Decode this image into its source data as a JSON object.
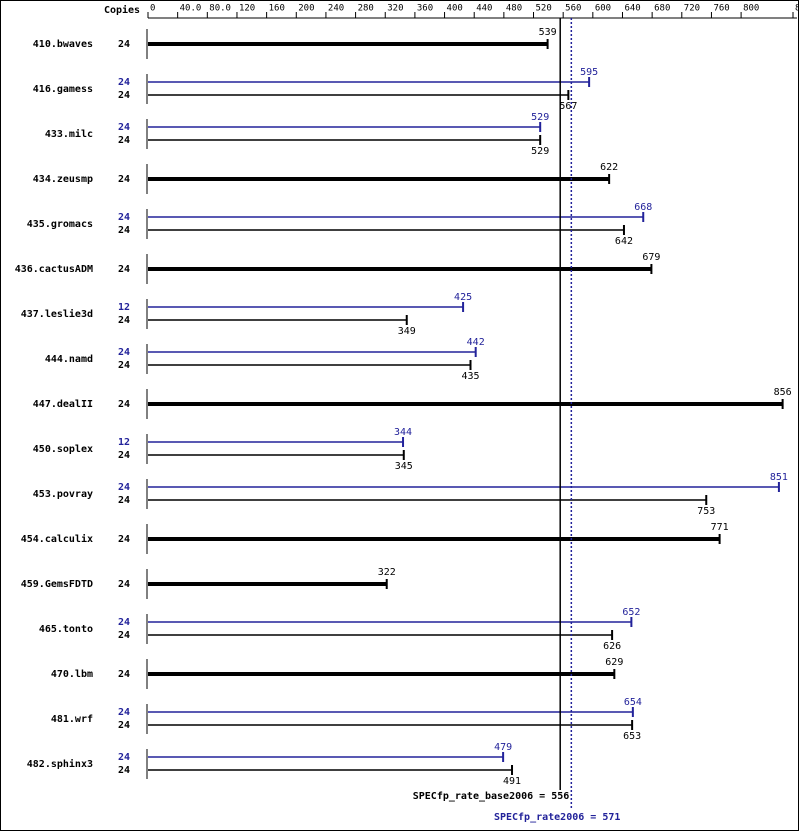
{
  "chart_data": {
    "type": "spec_bar",
    "x_label": "Copies",
    "xlim": [
      0,
      870
    ],
    "xticks": [
      0,
      {
        "value": 40,
        "label": "40.0"
      },
      {
        "value": 80,
        "label": "80.0"
      },
      120,
      160,
      200,
      240,
      280,
      320,
      360,
      400,
      440,
      480,
      520,
      560,
      600,
      640,
      680,
      720,
      760,
      800,
      870
    ],
    "base_color": "#000000",
    "peak_color": "#22229a",
    "rows": [
      {
        "name": "410.bwaves",
        "base_copies": 24,
        "base": 539
      },
      {
        "name": "416.gamess",
        "peak_copies": 24,
        "peak": 595,
        "base_copies": 24,
        "base": 567
      },
      {
        "name": "433.milc",
        "peak_copies": 24,
        "peak": 529,
        "base_copies": 24,
        "base": 529
      },
      {
        "name": "434.zeusmp",
        "base_copies": 24,
        "base": 622
      },
      {
        "name": "435.gromacs",
        "peak_copies": 24,
        "peak": 668,
        "base_copies": 24,
        "base": 642
      },
      {
        "name": "436.cactusADM",
        "base_copies": 24,
        "base": 679
      },
      {
        "name": "437.leslie3d",
        "peak_copies": 12,
        "peak": 425,
        "base_copies": 24,
        "base": 349
      },
      {
        "name": "444.namd",
        "peak_copies": 24,
        "peak": 442,
        "base_copies": 24,
        "base": 435
      },
      {
        "name": "447.dealII",
        "base_copies": 24,
        "base": 856
      },
      {
        "name": "450.soplex",
        "peak_copies": 12,
        "peak": 344,
        "base_copies": 24,
        "base": 345
      },
      {
        "name": "453.povray",
        "peak_copies": 24,
        "peak": 851,
        "base_copies": 24,
        "base": 753
      },
      {
        "name": "454.calculix",
        "base_copies": 24,
        "base": 771
      },
      {
        "name": "459.GemsFDTD",
        "base_copies": 24,
        "base": 322
      },
      {
        "name": "465.tonto",
        "peak_copies": 24,
        "peak": 652,
        "base_copies": 24,
        "base": 626
      },
      {
        "name": "470.lbm",
        "base_copies": 24,
        "base": 629
      },
      {
        "name": "481.wrf",
        "peak_copies": 24,
        "peak": 654,
        "base_copies": 24,
        "base": 653
      },
      {
        "name": "482.sphinx3",
        "peak_copies": 24,
        "peak": 479,
        "base_copies": 24,
        "base": 491
      }
    ],
    "base_summary_label": "SPECfp_rate_base2006 =",
    "base_summary": 556,
    "peak_summary_label": "SPECfp_rate2006 =",
    "peak_summary": 571
  }
}
